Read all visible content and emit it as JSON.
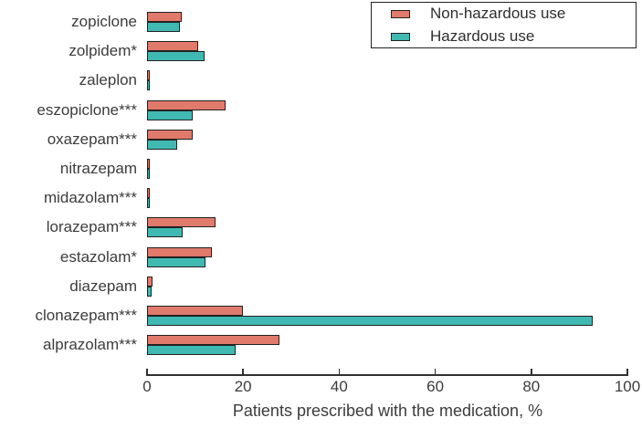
{
  "chart_data": {
    "type": "bar",
    "orientation": "horizontal",
    "xlabel": "Patients prescribed with the medication, %",
    "xlim": [
      0,
      100
    ],
    "xticks": [
      0,
      20,
      40,
      60,
      80,
      100
    ],
    "grid": false,
    "legend_position": "top-right",
    "bar_border_color": "#222222",
    "categories": [
      "zopiclone",
      "zolpidem*",
      "zaleplon",
      "eszopiclone***",
      "oxazepam***",
      "nitrazepam",
      "midazolam***",
      "lorazepam***",
      "estazolam*",
      "diazepam",
      "clonazepam***",
      "alprazolam***"
    ],
    "series": [
      {
        "name": "Non-hazardous use",
        "color": "#E07A6B",
        "values": [
          7.2,
          10.6,
          0.4,
          16.3,
          9.6,
          0.4,
          0.4,
          14.3,
          13.5,
          1.1,
          20.0,
          27.5
        ]
      },
      {
        "name": "Hazardous use",
        "color": "#41B9B3",
        "values": [
          6.8,
          12.0,
          0.4,
          9.6,
          6.3,
          0.4,
          0.5,
          7.5,
          12.2,
          0.9,
          92.8,
          18.5
        ]
      }
    ]
  }
}
